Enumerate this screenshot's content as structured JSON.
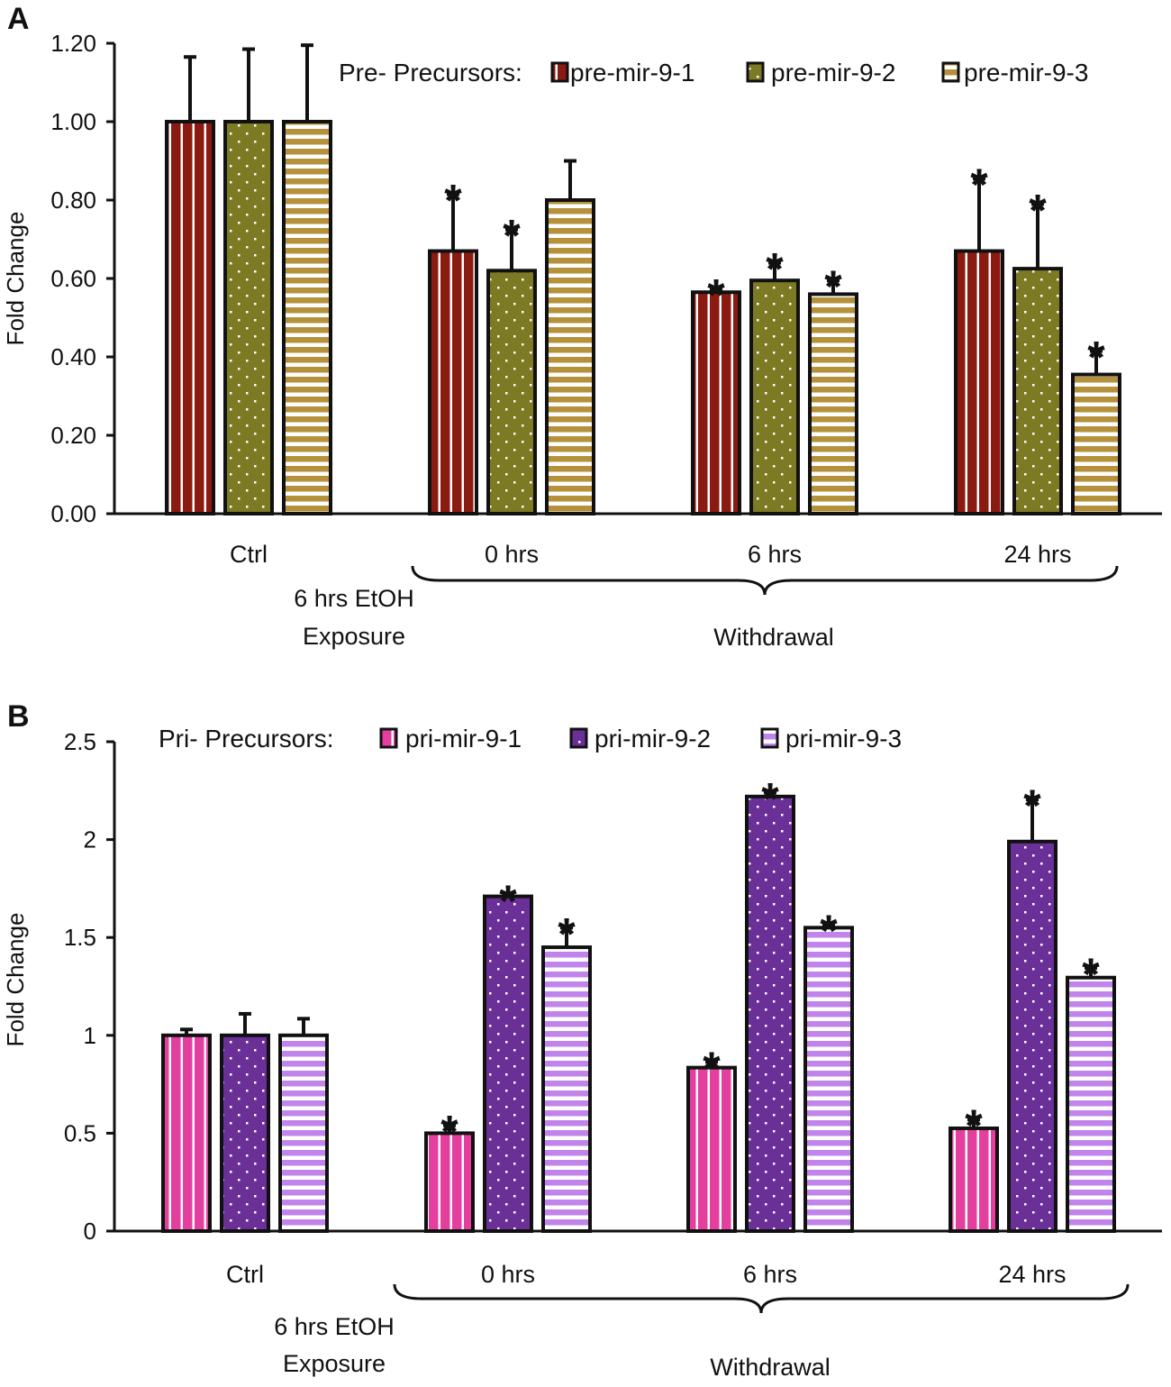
{
  "chart_data": [
    {
      "type": "bar",
      "panel_label": "A",
      "ylabel": "Fold Change",
      "ylim": [
        0,
        1.2
      ],
      "yticks": [
        "0.00",
        "0.20",
        "0.40",
        "0.60",
        "0.80",
        "1.00",
        "1.20"
      ],
      "categories": [
        "Ctrl",
        "0 hrs",
        "6 hrs",
        "24 hrs"
      ],
      "legend_title": "Pre- Precursors:",
      "ctrl_annotation": [
        "6 hrs EtOH",
        "Exposure"
      ],
      "bracket_label": "Withdrawal",
      "significance_marker": "*",
      "series": [
        {
          "name": "pre-mir-9-1",
          "color": "#8b1a10",
          "pattern": "vertical-stripes",
          "values": [
            1.0,
            0.67,
            0.565,
            0.67
          ],
          "errors": [
            0.165,
            0.145,
            0.008,
            0.185
          ],
          "significant": [
            false,
            true,
            true,
            true
          ]
        },
        {
          "name": "pre-mir-9-2",
          "color": "#7c7a22",
          "pattern": "dots",
          "values": [
            1.0,
            0.62,
            0.595,
            0.625
          ],
          "errors": [
            0.185,
            0.105,
            0.045,
            0.165
          ],
          "significant": [
            false,
            true,
            true,
            true
          ]
        },
        {
          "name": "pre-mir-9-3",
          "color": "#b5913c",
          "pattern": "horizontal-stripes",
          "values": [
            1.0,
            0.8,
            0.56,
            0.355
          ],
          "errors": [
            0.195,
            0.1,
            0.035,
            0.06
          ],
          "significant": [
            false,
            false,
            true,
            true
          ]
        }
      ]
    },
    {
      "type": "bar",
      "panel_label": "B",
      "ylabel": "Fold Change",
      "ylim": [
        0,
        2.5
      ],
      "yticks": [
        "0",
        "0.5",
        "1",
        "1.5",
        "2",
        "2.5"
      ],
      "categories": [
        "Ctrl",
        "0 hrs",
        "6 hrs",
        "24 hrs"
      ],
      "legend_title": "Pri- Precursors:",
      "ctrl_annotation": [
        "6 hrs EtOH",
        "Exposure"
      ],
      "bracket_label": "Withdrawal",
      "significance_marker": "*",
      "series": [
        {
          "name": "pri-mir-9-1",
          "color": "#e43e9f",
          "pattern": "vertical-stripes",
          "values": [
            1.0,
            0.5,
            0.835,
            0.525
          ],
          "errors": [
            0.03,
            0.04,
            0.03,
            0.045
          ],
          "significant": [
            false,
            true,
            true,
            true
          ]
        },
        {
          "name": "pri-mir-9-2",
          "color": "#6b2f98",
          "pattern": "dots",
          "values": [
            1.0,
            1.71,
            2.22,
            1.99
          ],
          "errors": [
            0.11,
            0.008,
            0.02,
            0.215
          ],
          "significant": [
            false,
            true,
            true,
            true
          ]
        },
        {
          "name": "pri-mir-9-3",
          "color": "#c184ea",
          "pattern": "horizontal-stripes",
          "values": [
            1.0,
            1.45,
            1.55,
            1.295
          ],
          "errors": [
            0.085,
            0.1,
            0.015,
            0.05
          ],
          "significant": [
            false,
            true,
            true,
            true
          ]
        }
      ]
    }
  ]
}
